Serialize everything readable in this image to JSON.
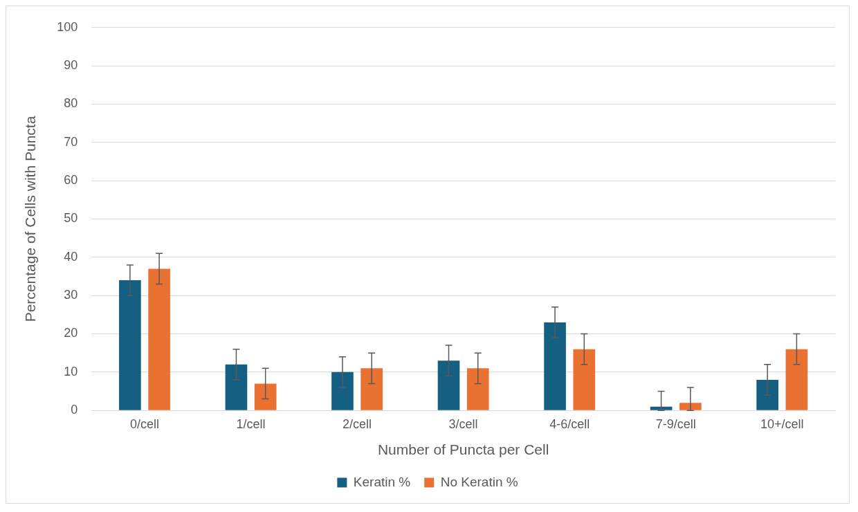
{
  "chart_data": {
    "type": "bar",
    "xlabel": "Number of Puncta per Cell",
    "ylabel": "Percentage of Cells with Puncta",
    "categories": [
      "0/cell",
      "1/cell",
      "2/cell",
      "3/cell",
      "4-6/cell",
      "7-9/cell",
      "10+/cell"
    ],
    "series": [
      {
        "name": "Keratin %",
        "color": "#156082",
        "values": [
          34,
          12,
          10,
          13,
          23,
          1,
          8
        ],
        "errors": [
          4,
          4,
          4,
          4,
          4,
          [
            0,
            5
          ],
          4
        ]
      },
      {
        "name": "No Keratin %",
        "color": "#e97132",
        "values": [
          37,
          7,
          11,
          11,
          16,
          2,
          16
        ],
        "errors": [
          4,
          4,
          4,
          4,
          4,
          [
            0,
            6
          ],
          4
        ]
      }
    ],
    "ylim": [
      0,
      100
    ],
    "yticks": [
      0,
      10,
      20,
      30,
      40,
      50,
      60,
      70,
      80,
      90,
      100
    ],
    "grid": "y",
    "legend": "bottom"
  }
}
